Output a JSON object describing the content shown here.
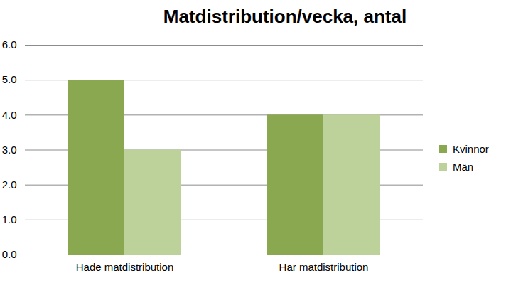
{
  "chart_data": {
    "type": "bar",
    "title": "Matdistribution/vecka, antal",
    "categories": [
      "Hade matdistribution",
      "Har matdistribution"
    ],
    "series": [
      {
        "name": "Kvinnor",
        "color": "#8aa84f",
        "values": [
          5,
          4
        ]
      },
      {
        "name": "Män",
        "color": "#bdd19b",
        "values": [
          3,
          4
        ]
      }
    ],
    "ylim": [
      0,
      6
    ],
    "yticks": [
      0,
      1,
      2,
      3,
      4,
      5,
      6
    ],
    "grid": true,
    "legend": "right"
  }
}
